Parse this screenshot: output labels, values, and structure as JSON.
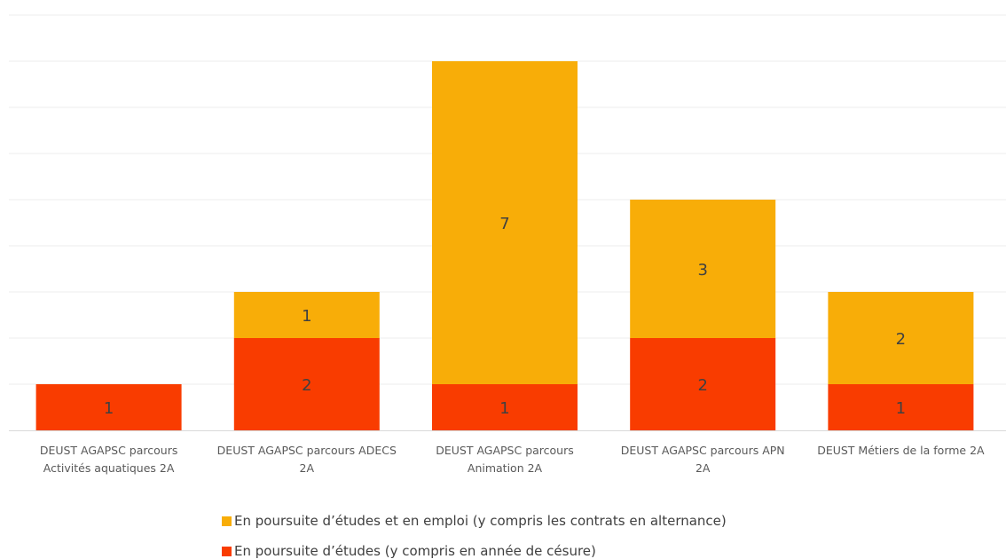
{
  "chart_data": {
    "type": "bar",
    "stacked": true,
    "title": "",
    "xlabel": "",
    "ylabel": "",
    "ylim": [
      0,
      9
    ],
    "grid": true,
    "legend_placement": "bottom",
    "categories": [
      [
        "DEUST AGAPSC parcours",
        "Activités aquatiques 2A"
      ],
      [
        "DEUST AGAPSC parcours ADECS",
        "2A"
      ],
      [
        "DEUST AGAPSC parcours",
        "Animation 2A"
      ],
      [
        "DEUST AGAPSC parcours APN",
        "2A"
      ],
      [
        "DEUST Métiers de la forme 2A"
      ]
    ],
    "series": [
      {
        "name": "En poursuite d’études (y compris en année de césure)",
        "color": "#F93C00",
        "values": [
          1,
          2,
          1,
          2,
          1
        ]
      },
      {
        "name": "En poursuite d’études et en emploi (y compris les contrats en alternance)",
        "color": "#F8AD08",
        "values": [
          null,
          1,
          7,
          3,
          2
        ]
      }
    ]
  }
}
